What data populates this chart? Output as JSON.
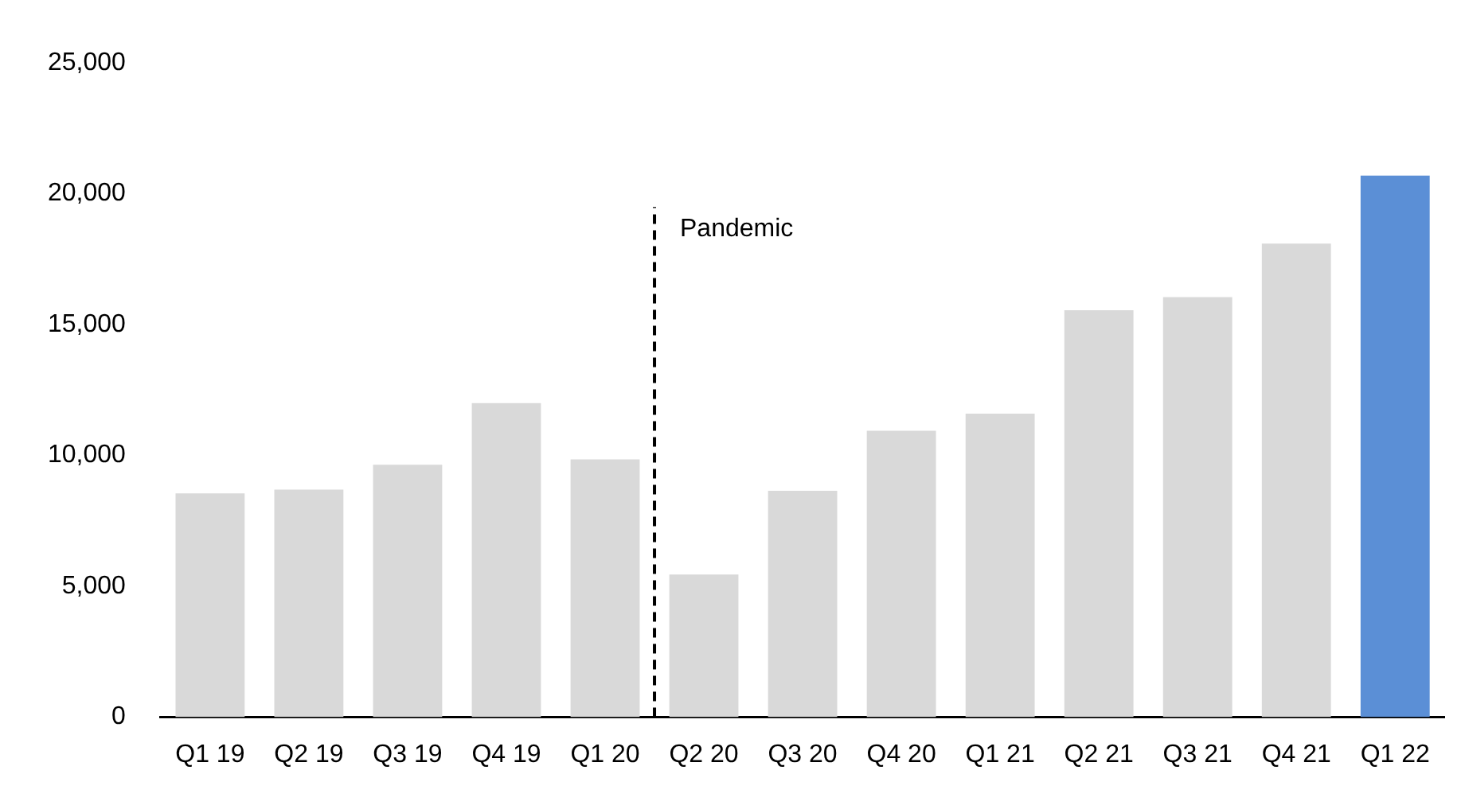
{
  "chart_data": {
    "type": "bar",
    "categories": [
      "Q1 19",
      "Q2 19",
      "Q3 19",
      "Q4 19",
      "Q1 20",
      "Q2 20",
      "Q3 20",
      "Q4 20",
      "Q1 21",
      "Q2 21",
      "Q3 21",
      "Q4 21",
      "Q1 22"
    ],
    "values": [
      8550,
      8700,
      9650,
      12000,
      9850,
      5450,
      8650,
      10950,
      11600,
      15550,
      16050,
      18100,
      20700
    ],
    "colors": [
      "#d9d9d9",
      "#d9d9d9",
      "#d9d9d9",
      "#d9d9d9",
      "#d9d9d9",
      "#d9d9d9",
      "#d9d9d9",
      "#d9d9d9",
      "#d9d9d9",
      "#d9d9d9",
      "#d9d9d9",
      "#d9d9d9",
      "#5b8fd6"
    ],
    "ylim": [
      0,
      25000
    ],
    "yticks": [
      {
        "value": 0,
        "label": "0"
      },
      {
        "value": 5000,
        "label": "5,000"
      },
      {
        "value": 10000,
        "label": "10,000"
      },
      {
        "value": 15000,
        "label": "15,000"
      },
      {
        "value": 20000,
        "label": "20,000"
      },
      {
        "value": 25000,
        "label": "25,000"
      }
    ],
    "annotations": [
      "Pandemic"
    ],
    "grid": false,
    "legend": false
  }
}
